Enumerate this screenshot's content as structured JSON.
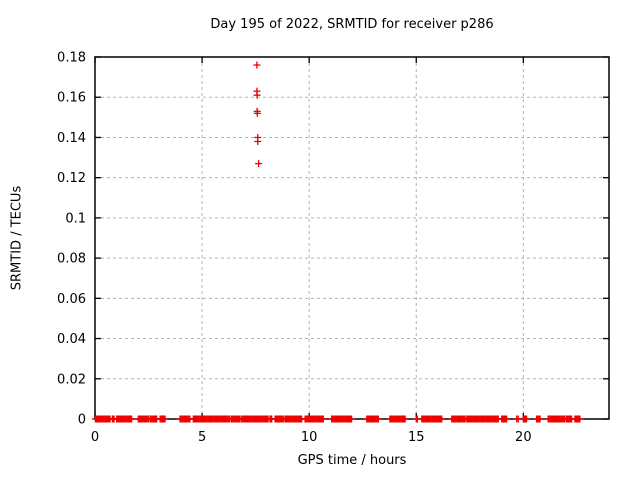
{
  "window": {
    "background": "#ffffff"
  },
  "chart_data": {
    "type": "scatter",
    "title": "Day 195 of 2022, SRMTID for receiver p286",
    "xlabel": "GPS time / hours",
    "ylabel": "SRMTID / TECUs",
    "xlim": [
      0,
      24
    ],
    "ylim": [
      0,
      0.18
    ],
    "xticks": {
      "values": [
        0,
        5,
        10,
        15,
        20
      ],
      "labels": [
        "0",
        "5",
        "10",
        "15",
        "20"
      ]
    },
    "yticks": {
      "values": [
        0,
        0.02,
        0.04,
        0.06,
        0.08,
        0.1,
        0.12,
        0.14,
        0.16,
        0.18
      ],
      "labels": [
        "0",
        "0.02",
        "0.04",
        "0.06",
        "0.08",
        "0.1",
        "0.12",
        "0.14",
        "0.16",
        "0.18"
      ]
    },
    "grid": true,
    "legend": "none",
    "style": {
      "marker_shape": "plus",
      "marker_color": "#ee0000",
      "marker_size": 7,
      "grid_color": "#b4b4b4",
      "axis_color": "#000000",
      "text_color": "#000000"
    },
    "series": [
      {
        "name": "srmtid-outliers",
        "points": [
          [
            7.56,
            0.176
          ],
          [
            7.56,
            0.163
          ],
          [
            7.57,
            0.161
          ],
          [
            7.57,
            0.153
          ],
          [
            7.58,
            0.152
          ],
          [
            7.6,
            0.14
          ],
          [
            7.6,
            0.138
          ],
          [
            7.64,
            0.127
          ]
        ]
      },
      {
        "name": "srmtid-baseline",
        "y": 0,
        "point_step_hours": 0.05,
        "segments": [
          [
            0.02,
            0.7
          ],
          [
            0.81,
            0.89
          ],
          [
            1.01,
            1.71
          ],
          [
            2.02,
            2.49
          ],
          [
            2.57,
            2.88
          ],
          [
            3.04,
            3.27
          ],
          [
            3.97,
            4.43
          ],
          [
            4.59,
            6.3
          ],
          [
            6.38,
            6.77
          ],
          [
            6.85,
            8.08
          ],
          [
            8.17,
            8.25
          ],
          [
            8.41,
            8.79
          ],
          [
            8.87,
            9.65
          ],
          [
            9.81,
            10.66
          ],
          [
            11.05,
            11.98
          ],
          [
            12.69,
            13.23
          ],
          [
            13.77,
            14.48
          ],
          [
            15.0,
            15.05
          ],
          [
            15.26,
            16.19
          ],
          [
            16.66,
            17.28
          ],
          [
            17.36,
            18.83
          ],
          [
            18.99,
            19.22
          ],
          [
            19.69,
            19.76
          ],
          [
            20.0,
            20.15
          ],
          [
            20.62,
            20.78
          ],
          [
            21.16,
            21.94
          ],
          [
            22.02,
            22.25
          ],
          [
            22.41,
            22.64
          ]
        ]
      }
    ]
  }
}
